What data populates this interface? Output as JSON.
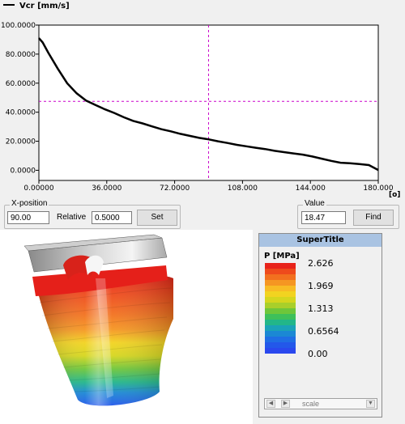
{
  "chart": {
    "legend_label": "Vcr [mm/s]",
    "x_unit": "[o]",
    "line_color": "#000000",
    "crosshair_color": "#cc00cc"
  },
  "chart_data": {
    "type": "line",
    "series": [
      {
        "name": "Vcr [mm/s]",
        "x": [
          0,
          2,
          5,
          10,
          15,
          20,
          25,
          30,
          35,
          40,
          45,
          50,
          55,
          60,
          65,
          70,
          75,
          80,
          85,
          90,
          95,
          100,
          105,
          110,
          115,
          120,
          125,
          130,
          135,
          140,
          145,
          150,
          155,
          160,
          165,
          170,
          175,
          180
        ],
        "y": [
          91,
          88,
          81,
          70,
          60,
          53,
          48,
          45,
          42,
          39.5,
          36.5,
          34,
          32.3,
          30.2,
          28.3,
          26.8,
          25.1,
          23.7,
          22.3,
          21.3,
          20,
          18.8,
          17.5,
          16.5,
          15.5,
          14.6,
          13.4,
          12.5,
          11.6,
          10.8,
          9.5,
          8.0,
          6.5,
          5.2,
          4.8,
          4.3,
          3.6,
          0.2
        ]
      }
    ],
    "xlim": [
      0,
      180
    ],
    "ylim": [
      -7,
      100
    ],
    "x_ticks": [
      "0.00000",
      "36.0000",
      "72.0000",
      "108.000",
      "144.000",
      "180.000"
    ],
    "y_ticks": [
      "100.0000",
      "80.0000",
      "60.0000",
      "40.0000",
      "20.0000",
      "0.0000"
    ],
    "x_tick_values": [
      0,
      36,
      72,
      108,
      144,
      180
    ],
    "y_tick_values": [
      100,
      80,
      60,
      40,
      20,
      0
    ],
    "crosshair": {
      "x": 90,
      "y": 47.5
    }
  },
  "xposition": {
    "title": "X-position",
    "value": "90.00",
    "relative_label": "Relative",
    "relative_value": "0.5000",
    "set_label": "Set"
  },
  "value_box": {
    "title": "Value",
    "value": "18.47",
    "find_label": "Find"
  },
  "legend": {
    "title": "SuperTitle",
    "unit": "P [MPa]",
    "labels": [
      "2.626",
      "1.969",
      "1.313",
      "0.6564",
      "0.00"
    ],
    "colors": [
      "#e8231a",
      "#ee4a1c",
      "#f2701f",
      "#f59622",
      "#f8bb24",
      "#f2d320",
      "#d5d61e",
      "#a9cf2a",
      "#6ec63a",
      "#3ec05a",
      "#22b689",
      "#1aa2b8",
      "#1b88d4",
      "#1f6ee4",
      "#2358ea",
      "#2a48ee"
    ],
    "scale_text": "scale"
  }
}
